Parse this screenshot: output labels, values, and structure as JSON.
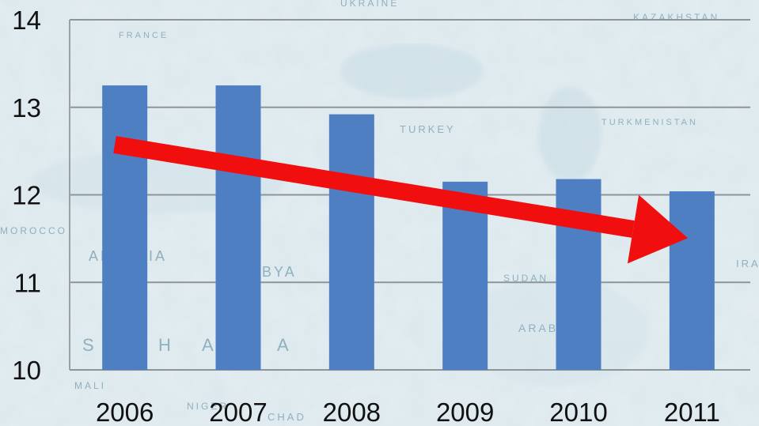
{
  "chart_data": {
    "type": "bar",
    "categories": [
      "2006",
      "2007",
      "2008",
      "2009",
      "2010",
      "2011"
    ],
    "values": [
      13.25,
      13.25,
      12.92,
      12.15,
      12.18,
      12.04
    ],
    "ylim": [
      10,
      14
    ],
    "yticks": [
      "10",
      "11",
      "12",
      "13",
      "14"
    ],
    "grid": true,
    "bar_color": "#4f7fc3",
    "gridline_color": "#8d9599",
    "annotation": {
      "type": "trend-arrow",
      "color": "#f00e0e",
      "direction": "down"
    }
  },
  "background": {
    "type": "faded-relief-map",
    "labels": [
      "UKRAINE",
      "KAZAKHSTAN",
      "FRANCE",
      "TURKEY",
      "TURKMENISTAN",
      "MOROCCO",
      "ALGERIA",
      "LIBYA",
      "MALI",
      "NIGER",
      "CHAD",
      "SUDAN",
      "ARABIA",
      "IRAN",
      "S",
      "H",
      "A",
      "A"
    ],
    "colors": {
      "sea": "#d9e8ee",
      "land": "#ecf3f5",
      "relief": "#b7cfd9"
    }
  }
}
